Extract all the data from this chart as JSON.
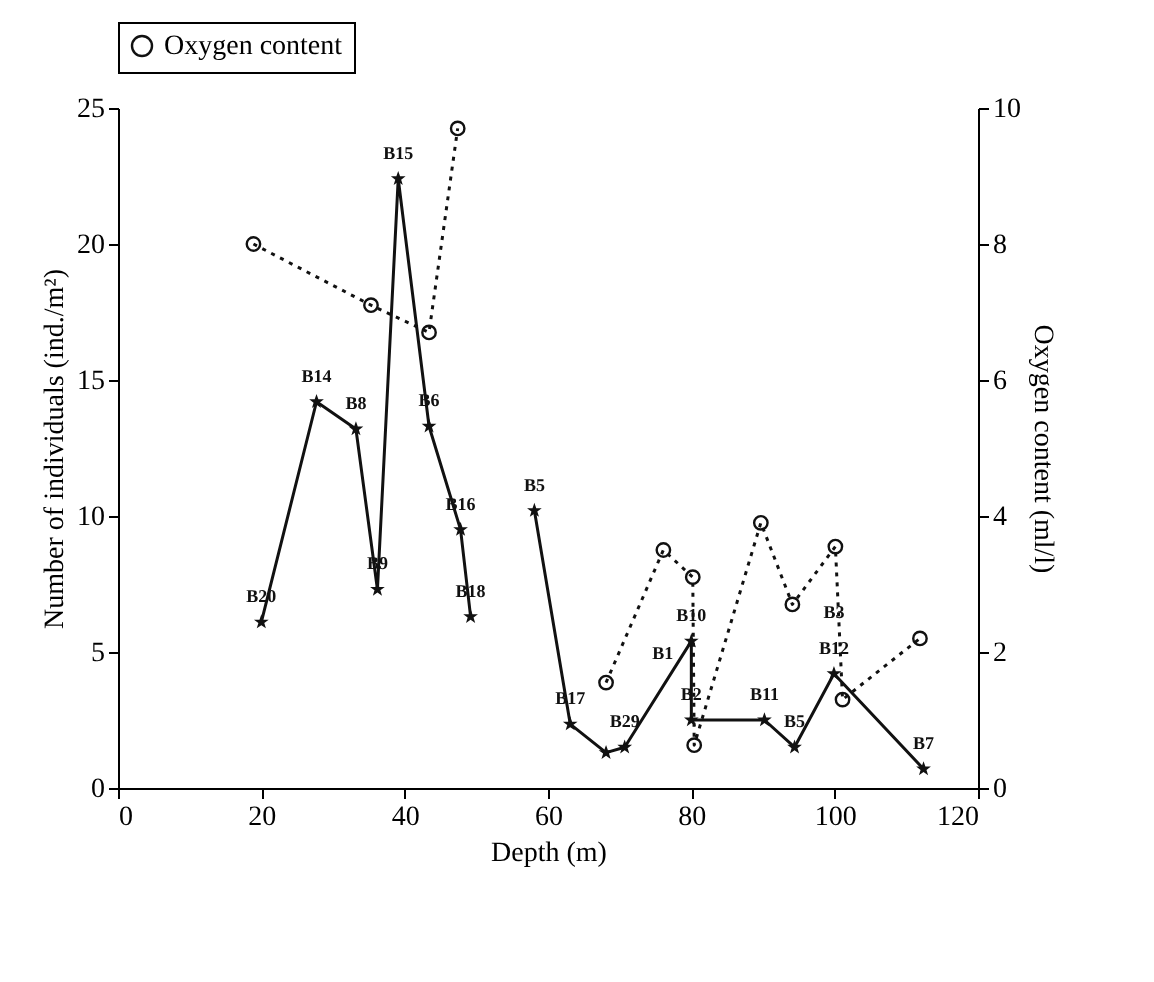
{
  "chart_data": {
    "type": "line",
    "xlabel": "Depth (m)",
    "ylabel": "Number of individuals (ind./m²)",
    "y2label": "Oxygen content (ml/l)",
    "xlim": [
      0,
      120
    ],
    "xticks": [
      0,
      20,
      40,
      60,
      80,
      100,
      120
    ],
    "ylim": [
      0,
      25
    ],
    "yticks": [
      0,
      5,
      10,
      15,
      20,
      25
    ],
    "y2lim": [
      0,
      10
    ],
    "y2ticks": [
      0,
      2,
      4,
      6,
      8,
      10
    ],
    "grid": false,
    "legend": "top",
    "series": [
      {
        "type": "line",
        "color": "#111111",
        "marker": "star",
        "line_style": "solid",
        "x": [
          20,
          27.7,
          33.2,
          36.2,
          39.1,
          43.4,
          47.8,
          49.2,
          53,
          58.1,
          63.1,
          68.1,
          70.7,
          80,
          80,
          90.2,
          94.4,
          99.9,
          112.4
        ],
        "values": [
          6.1,
          14.2,
          13.2,
          7.3,
          22.4,
          13.3,
          9.5,
          6.3,
          null,
          10.2,
          2.35,
          1.3,
          1.5,
          5.4,
          2.5,
          2.5,
          1.5,
          4.2,
          0.7
        ]
      },
      {
        "type": "line",
        "name": "Oxygen content",
        "axis": "y2",
        "color": "#111111",
        "marker": "circle",
        "line_style": "dotted",
        "x": [
          18.9,
          35.3,
          43.4,
          47.4,
          58,
          68.1,
          76.1,
          80.2,
          80.4,
          89.7,
          94.1,
          100.1,
          101.1,
          111.9
        ],
        "values": [
          8.0,
          7.1,
          6.7,
          9.7,
          null,
          1.55,
          3.5,
          3.1,
          0.63,
          3.9,
          2.7,
          3.55,
          1.3,
          2.2
        ]
      }
    ],
    "annotations": [
      {
        "text": "B20",
        "x": 20,
        "y": 6.1
      },
      {
        "text": "B14",
        "x": 27.7,
        "y": 14.2
      },
      {
        "text": "B8",
        "x": 33.2,
        "y": 13.2
      },
      {
        "text": "B9",
        "x": 36.2,
        "y": 7.3
      },
      {
        "text": "B15",
        "x": 39.1,
        "y": 22.4
      },
      {
        "text": "B6",
        "x": 43.4,
        "y": 13.3
      },
      {
        "text": "B16",
        "x": 47.8,
        "y": 9.5
      },
      {
        "text": "B18",
        "x": 49.2,
        "y": 6.3
      },
      {
        "text": "B5",
        "x": 58.1,
        "y": 10.2
      },
      {
        "text": "B17",
        "x": 63.1,
        "y": 2.35
      },
      {
        "text": "B29",
        "x": 70.7,
        "y": 1.5
      },
      {
        "text": "B1",
        "x": 76,
        "y": 4
      },
      {
        "text": "B10",
        "x": 80,
        "y": 5.4
      },
      {
        "text": "B2",
        "x": 80,
        "y": 2.5
      },
      {
        "text": "B11",
        "x": 90.2,
        "y": 2.5
      },
      {
        "text": "B5",
        "x": 94.4,
        "y": 1.5
      },
      {
        "text": "B3",
        "x": 99.9,
        "y": 5.5
      },
      {
        "text": "B12",
        "x": 99.9,
        "y": 4.2
      },
      {
        "text": "B7",
        "x": 112.4,
        "y": 0.7
      }
    ]
  }
}
